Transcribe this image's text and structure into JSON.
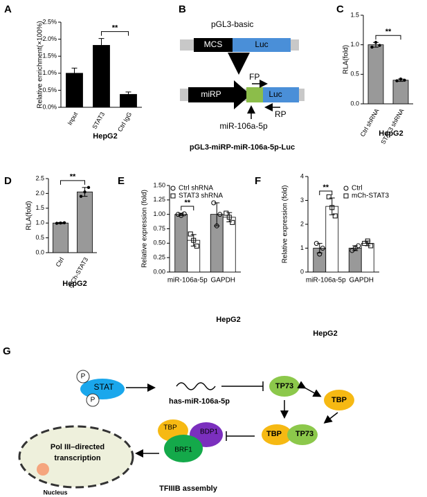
{
  "chart_data": [
    {
      "panel_label": "A",
      "type": "bar",
      "y_label": "Relative enrichment(×100%)",
      "categories": [
        "Input",
        "STAT3",
        "Ctrl IgG"
      ],
      "values": [
        1.0,
        1.82,
        0.38
      ],
      "errors": [
        0.15,
        0.2,
        0.07
      ],
      "error_bars": "up",
      "color": "#000000",
      "ylim": [
        0,
        2.5
      ],
      "yticks": [
        {
          "value": 0,
          "label": "0.0%"
        },
        {
          "value": 0.5,
          "label": "0.5%"
        },
        {
          "value": 1,
          "label": "1.0%"
        },
        {
          "value": 1.5,
          "label": "1.5%"
        },
        {
          "value": 2,
          "label": "2.0%"
        },
        {
          "value": 2.5,
          "label": "2.5%"
        }
      ],
      "significance": [
        {
          "between": [
            "STAT3",
            "Ctrl IgG"
          ],
          "label": "**"
        }
      ],
      "caption": "HepG2"
    },
    {
      "panel_label": "C",
      "type": "bar",
      "y_label": "RLA(fold)",
      "categories": [
        "Ctrl shRNA",
        "STAT3 shRNA"
      ],
      "values": [
        1.0,
        0.4
      ],
      "errors": [
        0.04,
        0.02
      ],
      "points": [
        [
          0.96,
          1.04,
          0.99
        ],
        [
          0.39,
          0.42,
          0.4
        ]
      ],
      "error_bars": "both",
      "color": "#999999",
      "ylim": [
        0,
        1.5
      ],
      "yticks": [
        {
          "value": 0,
          "label": "0.0"
        },
        0.5,
        {
          "value": 1,
          "label": "1.0"
        },
        1.5
      ],
      "significance": [
        {
          "between": [
            "Ctrl shRNA",
            "STAT3 shRNA"
          ],
          "label": "**"
        }
      ],
      "caption": "HepG2"
    },
    {
      "panel_label": "D",
      "type": "bar",
      "y_label": "RLA(fold)",
      "categories": [
        "Ctrl",
        "mCh-STAT3"
      ],
      "values": [
        1.0,
        2.05
      ],
      "errors": [
        0.02,
        0.15
      ],
      "points": [
        [
          0.99,
          1.0,
          1.01
        ],
        [
          1.9,
          2.05,
          2.2
        ]
      ],
      "error_bars": "both",
      "color": "#999999",
      "ylim": [
        0,
        2.5
      ],
      "yticks": [
        {
          "value": 0,
          "label": "0.0"
        },
        0.5,
        {
          "value": 1,
          "label": "1.0"
        },
        1.5,
        {
          "value": 2,
          "label": "2.0"
        },
        2.5
      ],
      "significance": [
        {
          "between": [
            "Ctrl",
            "mCh-STAT3"
          ],
          "label": "**"
        }
      ],
      "caption": "HepG2"
    },
    {
      "panel_label": "E",
      "type": "bar",
      "y_label": "Relative expression (fold)",
      "categories": [
        "miR-106a-5p",
        "GAPDH"
      ],
      "series": [
        {
          "name": "Ctrl shRNA",
          "color": "#999999",
          "marker": "circle",
          "values": [
            1.0,
            1.0
          ],
          "errors": [
            0.02,
            0.2
          ],
          "points": [
            [
              1.0,
              0.98,
              1.01
            ],
            [
              1.2,
              0.8,
              1.0
            ]
          ]
        },
        {
          "name": "STAT3 shRNA",
          "color": "#ffffff",
          "marker": "square",
          "values": [
            0.55,
            0.95
          ],
          "errors": [
            0.1,
            0.08
          ],
          "points": [
            [
              0.66,
              0.55,
              0.45
            ],
            [
              1.02,
              0.95,
              0.86
            ]
          ]
        }
      ],
      "error_bars": "both",
      "ylim": [
        0,
        1.5
      ],
      "yticks": [
        {
          "value": 0,
          "label": "0.00"
        },
        0.25,
        {
          "value": 0.5,
          "label": "0.50"
        },
        0.75,
        {
          "value": 1,
          "label": "1.00"
        },
        1.25,
        {
          "value": 1.5,
          "label": "1.50"
        }
      ],
      "legend": "top-left",
      "significance": [
        {
          "category": "miR-106a-5p",
          "label": "**"
        }
      ],
      "caption": "HepG2"
    },
    {
      "panel_label": "F",
      "type": "bar",
      "y_label": "Relative expression (fold)",
      "categories": [
        "miR-106a-5p",
        "GAPDH"
      ],
      "series": [
        {
          "name": "Ctrl",
          "color": "#999999",
          "marker": "circle",
          "values": [
            1.0,
            1.0
          ],
          "errors": [
            0.2,
            0.1
          ],
          "points": [
            [
              1.2,
              0.75,
              1.0
            ],
            [
              0.9,
              1.0,
              1.1
            ]
          ]
        },
        {
          "name": "mCh-STAT3",
          "color": "#ffffff",
          "marker": "square",
          "values": [
            2.75,
            1.2
          ],
          "errors": [
            0.35,
            0.1
          ],
          "points": [
            [
              3.15,
              2.7,
              2.35
            ],
            [
              1.2,
              1.3,
              1.1
            ]
          ]
        }
      ],
      "error_bars": "both",
      "ylim": [
        0,
        4
      ],
      "yticks": [
        0,
        1,
        2,
        3,
        4
      ],
      "legend": "top-right",
      "significance": [
        {
          "category": "miR-106a-5p",
          "label": "**"
        }
      ],
      "caption": "HepG2"
    }
  ],
  "diagram_b": {
    "panel_label": "B",
    "title": "pGL3-basic",
    "mcs": "MCS",
    "luc_top": "Luc",
    "mirp": "miRP",
    "luc_bottom": "Luc",
    "fp": "FP",
    "rp": "RP",
    "mirna": "miR-106a-5p",
    "caption": "pGL3-miRP-miR-106a-5p-Luc"
  },
  "diagram_g": {
    "panel_label": "G",
    "stat": "STAT",
    "p_top": "P",
    "p_bottom": "P",
    "mirna": "has-miR-106a-5p",
    "tp73_a": "TP73",
    "tbp_a": "TBP",
    "tbp_b": "TBP",
    "tp73_b": "TP73",
    "tbp_c": "TBP",
    "bdp1": "BDP1",
    "brf1": "BRF1",
    "complex": "TFIIIB assembly",
    "transcription": [
      "Pol III–directed",
      "transcription"
    ],
    "nucleus": "Nucleus"
  }
}
